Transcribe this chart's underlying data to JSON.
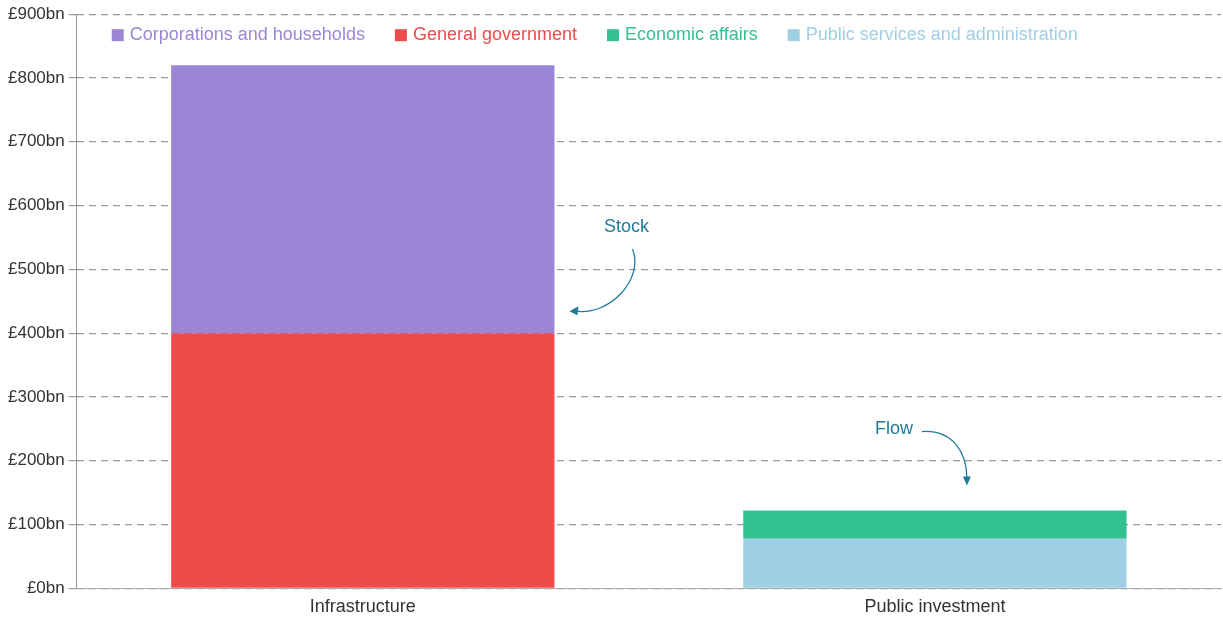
{
  "chart_data": {
    "type": "bar",
    "stacked": true,
    "categories": [
      "Infrastructure",
      "Public investment"
    ],
    "series": [
      {
        "name": "Public services and administration",
        "color": "#9ecfe5",
        "values": [
          null,
          78
        ]
      },
      {
        "name": "Economic affairs",
        "color": "#33c193",
        "values": [
          null,
          44
        ]
      },
      {
        "name": "General government",
        "color": "#ef4b4b",
        "values": [
          400,
          null
        ]
      },
      {
        "name": "Corporations and households",
        "color": "#9b86d6",
        "values": [
          420,
          null
        ]
      }
    ],
    "ylim": [
      0,
      900
    ],
    "yticks": [
      {
        "value": 0,
        "label": "£0bn"
      },
      {
        "value": 100,
        "label": "£100bn"
      },
      {
        "value": 200,
        "label": "£200bn"
      },
      {
        "value": 300,
        "label": "£300bn"
      },
      {
        "value": 400,
        "label": "£400bn"
      },
      {
        "value": 500,
        "label": "£500bn"
      },
      {
        "value": 600,
        "label": "£600bn"
      },
      {
        "value": 700,
        "label": "£700bn"
      },
      {
        "value": 800,
        "label": "£800bn"
      },
      {
        "value": 900,
        "label": "£900bn"
      }
    ],
    "grid": "y",
    "legend": "top left",
    "annotations": [
      "Stock",
      "Flow"
    ]
  }
}
